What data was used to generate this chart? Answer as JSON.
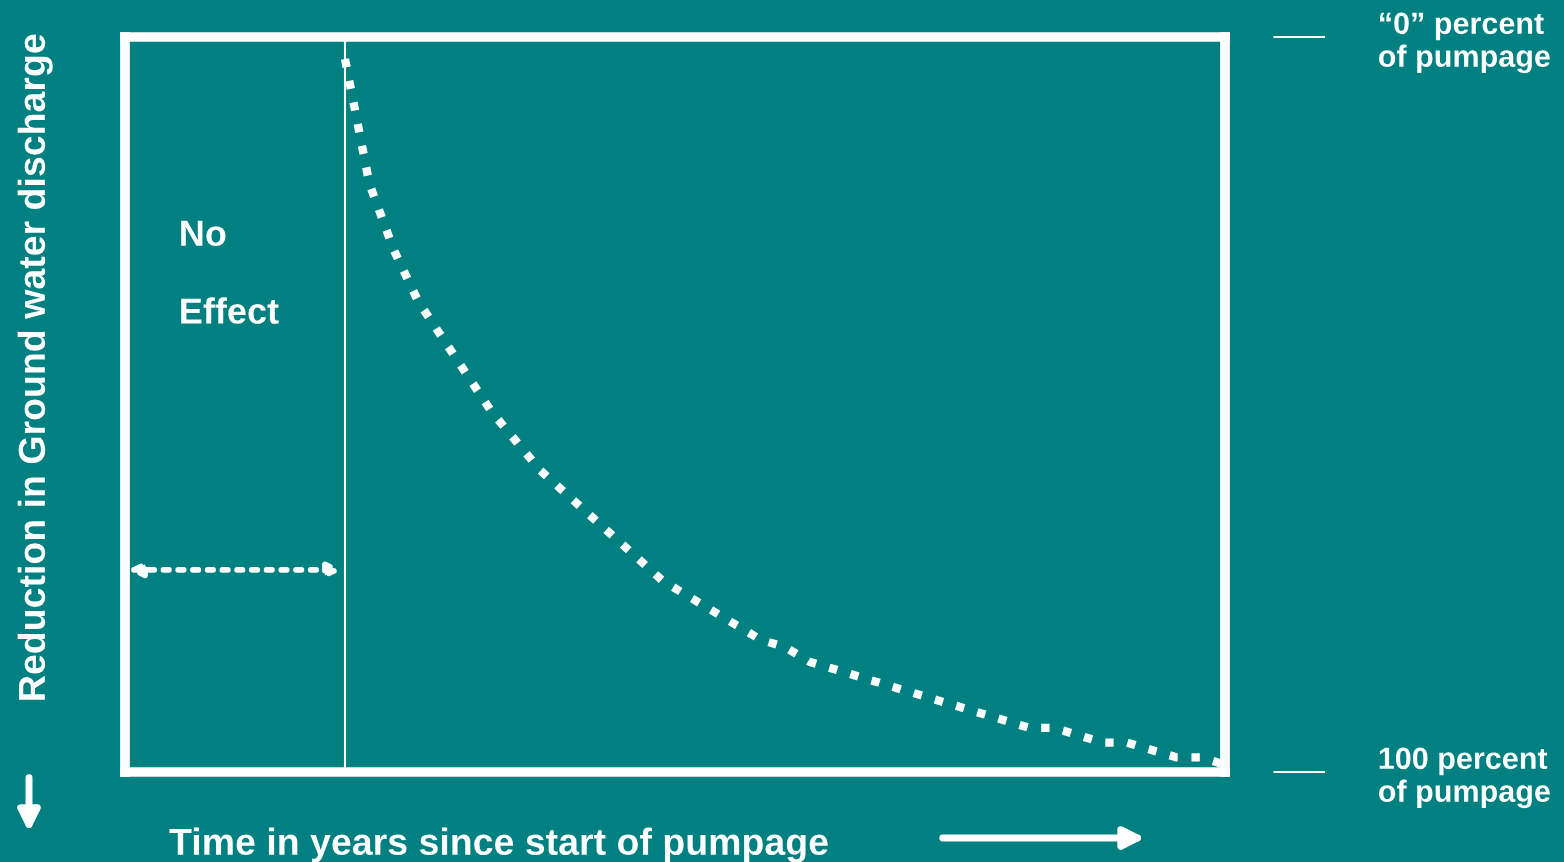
{
  "chart_data": {
    "type": "line",
    "xlabel": "Time in years since start of pumpage",
    "ylabel": "Reduction in Ground water discharge",
    "categories": [
      null,
      null,
      null,
      null,
      null,
      null,
      null,
      null,
      null,
      null,
      null,
      null,
      null,
      null,
      null,
      null,
      null,
      null,
      null,
      null,
      null,
      null,
      null,
      null,
      null,
      null,
      null,
      null,
      null,
      null,
      null,
      null,
      null,
      null,
      null,
      null,
      null,
      null,
      null,
      null,
      null,
      null,
      null,
      null,
      null,
      null
    ],
    "series": [
      {
        "color": "#ffffff",
        "values": [
          null,
          null,
          null,
          null,
          null,
          null,
          null,
          null,
          null,
          3,
          20,
          29,
          36,
          41,
          46,
          51,
          55,
          59,
          62,
          65,
          68,
          71,
          74,
          76,
          78,
          80,
          82,
          83,
          85,
          86,
          87,
          88,
          89,
          90,
          91,
          92,
          93,
          94,
          94,
          95,
          96,
          96,
          97,
          98,
          98,
          99
        ]
      }
    ],
    "ylim": [
      100,
      0
    ],
    "yticks": [
      {
        "value": 0,
        "label": "“0” percent\nof pumpage"
      },
      {
        "value": 100,
        "label": "100 percent\nof pumpage"
      }
    ],
    "tick_labels": "y",
    "line_style": "dotted",
    "marker": "none",
    "grid": false,
    "annotations": [
      "No\n\nEffect"
    ]
  }
}
